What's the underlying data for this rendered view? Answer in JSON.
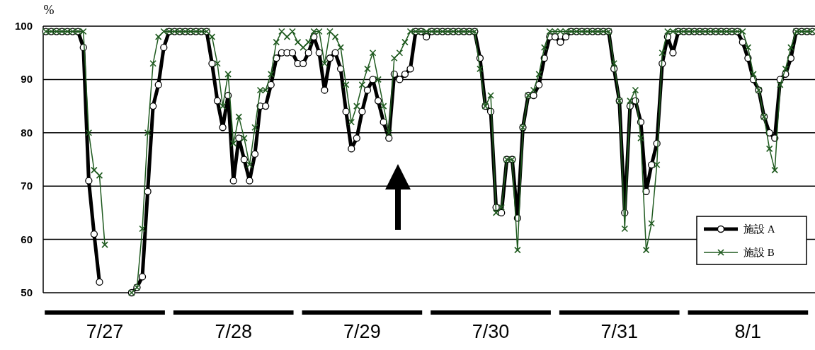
{
  "chart_data": {
    "type": "line",
    "ylabel": "%",
    "categories": [
      null,
      null,
      null,
      null,
      null,
      null,
      null,
      null,
      null,
      null,
      null,
      "7/27",
      null,
      null,
      null,
      null,
      null,
      null,
      null,
      null,
      null,
      null,
      null,
      null,
      null,
      null,
      null,
      null,
      null,
      null,
      null,
      null,
      null,
      null,
      null,
      "7/28",
      null,
      null,
      null,
      null,
      null,
      null,
      null,
      null,
      null,
      null,
      null,
      null,
      null,
      null,
      null,
      null,
      null,
      null,
      null,
      null,
      null,
      null,
      null,
      "7/29",
      null,
      null,
      null,
      null,
      null,
      null,
      null,
      null,
      null,
      null,
      null,
      null,
      null,
      null,
      null,
      null,
      null,
      null,
      null,
      null,
      null,
      null,
      null,
      "7/30",
      null,
      null,
      null,
      null,
      null,
      null,
      null,
      null,
      null,
      null,
      null,
      null,
      null,
      null,
      null,
      null,
      null,
      null,
      null,
      null,
      null,
      null,
      null,
      "7/31",
      null,
      null,
      null,
      null,
      null,
      null,
      null,
      null,
      null,
      null,
      null,
      null,
      null,
      null,
      null,
      null,
      null,
      null,
      null,
      null,
      null,
      null,
      null,
      "8/1",
      null,
      null,
      null,
      null,
      null,
      null,
      null,
      null,
      null,
      null,
      null,
      null
    ],
    "ylim": [
      50,
      100
    ],
    "yticks": [
      50,
      60,
      70,
      80,
      90,
      100
    ],
    "grid": "y",
    "legend": "bottom right",
    "series": [
      {
        "name": "施設 A",
        "color": "#000000",
        "marker": "circle",
        "values": [
          99,
          99,
          99,
          99,
          99,
          99,
          99,
          96,
          71,
          61,
          52,
          null,
          null,
          null,
          null,
          null,
          50,
          51,
          53,
          69,
          85,
          89,
          96,
          99,
          99,
          99,
          99,
          99,
          99,
          99,
          99,
          93,
          86,
          81,
          87,
          71,
          79,
          75,
          71,
          76,
          85,
          85,
          89,
          94,
          95,
          95,
          95,
          93,
          93,
          95,
          98,
          95,
          88,
          94,
          95,
          92,
          84,
          77,
          79,
          84,
          88,
          90,
          86,
          82,
          79,
          91,
          90,
          91,
          92,
          99,
          99,
          98,
          99,
          99,
          99,
          99,
          99,
          99,
          99,
          99,
          99,
          94,
          85,
          84,
          66,
          65,
          75,
          75,
          64,
          81,
          87,
          87,
          89,
          94,
          98,
          98,
          97,
          98,
          99,
          99,
          99,
          99,
          99,
          99,
          99,
          99,
          92,
          86,
          65,
          85,
          86,
          82,
          69,
          74,
          78,
          93,
          98,
          95,
          99,
          99,
          99,
          99,
          99,
          99,
          99,
          99,
          99,
          99,
          99,
          99,
          97,
          94,
          90,
          88,
          83,
          80,
          79,
          90,
          91,
          94,
          99,
          99,
          99,
          99
        ]
      },
      {
        "name": "施設 B",
        "color": "#1f5a1f",
        "marker": "cross",
        "values": [
          99,
          99,
          99,
          99,
          99,
          99,
          99,
          99,
          80,
          73,
          72,
          59,
          null,
          null,
          null,
          null,
          50,
          51,
          62,
          80,
          93,
          98,
          99,
          99,
          99,
          99,
          99,
          99,
          99,
          99,
          99,
          98,
          93,
          85,
          91,
          78,
          83,
          79,
          74,
          81,
          88,
          88,
          91,
          97,
          99,
          98,
          99,
          97,
          96,
          97,
          99,
          99,
          93,
          99,
          98,
          96,
          89,
          82,
          85,
          89,
          92,
          95,
          90,
          85,
          80,
          94,
          95,
          97,
          99,
          99,
          99,
          99,
          99,
          99,
          99,
          99,
          99,
          99,
          99,
          99,
          99,
          92,
          85,
          87,
          65,
          66,
          75,
          75,
          58,
          81,
          87,
          88,
          91,
          96,
          99,
          99,
          99,
          99,
          99,
          99,
          99,
          99,
          99,
          99,
          99,
          99,
          93,
          86,
          62,
          86,
          88,
          79,
          58,
          63,
          74,
          95,
          99,
          99,
          99,
          99,
          99,
          99,
          99,
          99,
          99,
          99,
          99,
          99,
          99,
          99,
          99,
          96,
          91,
          88,
          83,
          77,
          73,
          89,
          92,
          96,
          99,
          99,
          99,
          99
        ]
      }
    ]
  }
}
